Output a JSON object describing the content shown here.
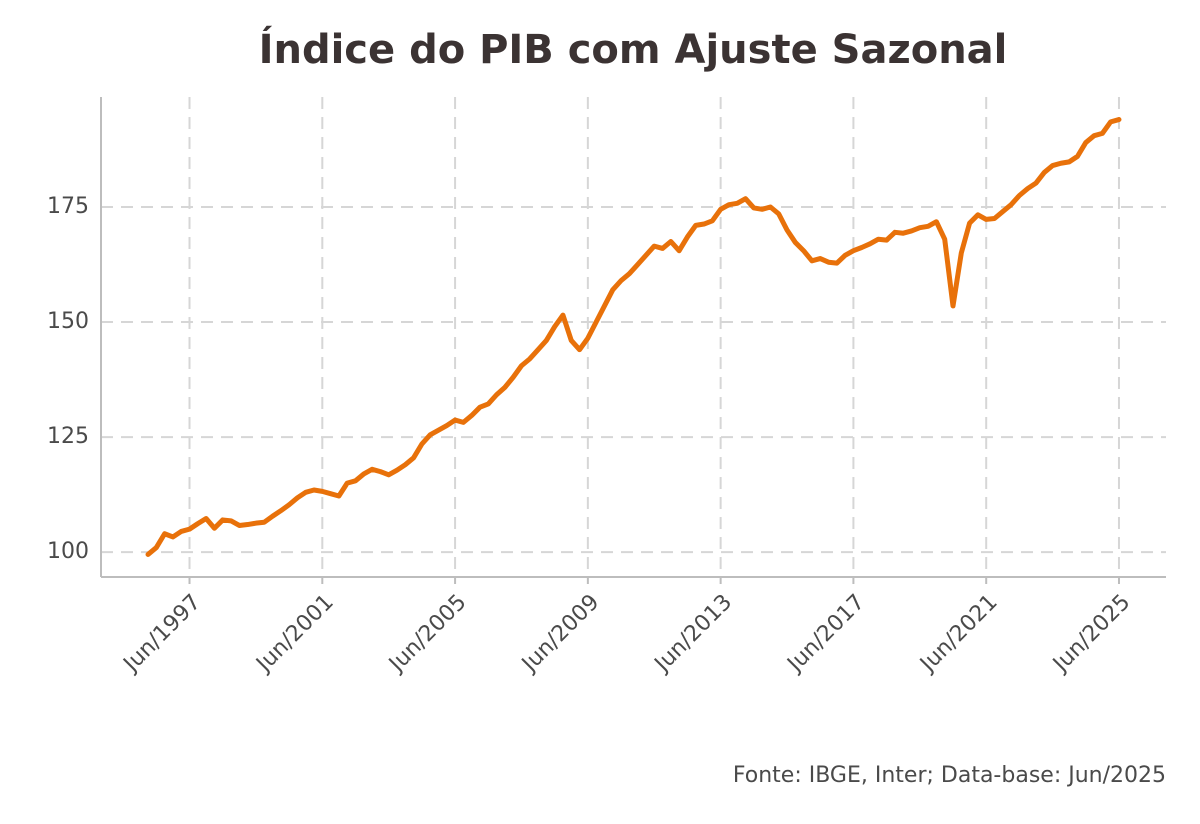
{
  "chart_data": {
    "type": "line",
    "title": "Índice do PIB com Ajuste Sazonal",
    "source": "Fonte: IBGE, Inter; Data-base: Jun/2025",
    "x": [
      "1996-03",
      "1996-06",
      "1996-09",
      "1996-12",
      "1997-03",
      "1997-06",
      "1997-09",
      "1997-12",
      "1998-03",
      "1998-06",
      "1998-09",
      "1998-12",
      "1999-03",
      "1999-06",
      "1999-09",
      "1999-12",
      "2000-03",
      "2000-06",
      "2000-09",
      "2000-12",
      "2001-03",
      "2001-06",
      "2001-09",
      "2001-12",
      "2002-03",
      "2002-06",
      "2002-09",
      "2002-12",
      "2003-03",
      "2003-06",
      "2003-09",
      "2003-12",
      "2004-03",
      "2004-06",
      "2004-09",
      "2004-12",
      "2005-03",
      "2005-06",
      "2005-09",
      "2005-12",
      "2006-03",
      "2006-06",
      "2006-09",
      "2006-12",
      "2007-03",
      "2007-06",
      "2007-09",
      "2007-12",
      "2008-03",
      "2008-06",
      "2008-09",
      "2008-12",
      "2009-03",
      "2009-06",
      "2009-09",
      "2009-12",
      "2010-03",
      "2010-06",
      "2010-09",
      "2010-12",
      "2011-03",
      "2011-06",
      "2011-09",
      "2011-12",
      "2012-03",
      "2012-06",
      "2012-09",
      "2012-12",
      "2013-03",
      "2013-06",
      "2013-09",
      "2013-12",
      "2014-03",
      "2014-06",
      "2014-09",
      "2014-12",
      "2015-03",
      "2015-06",
      "2015-09",
      "2015-12",
      "2016-03",
      "2016-06",
      "2016-09",
      "2016-12",
      "2017-03",
      "2017-06",
      "2017-09",
      "2017-12",
      "2018-03",
      "2018-06",
      "2018-09",
      "2018-12",
      "2019-03",
      "2019-06",
      "2019-09",
      "2019-12",
      "2020-03",
      "2020-06",
      "2020-09",
      "2020-12",
      "2021-03",
      "2021-06",
      "2021-09",
      "2021-12",
      "2022-03",
      "2022-06",
      "2022-09",
      "2022-12",
      "2023-03",
      "2023-06",
      "2023-09",
      "2023-12",
      "2024-03",
      "2024-06",
      "2024-09",
      "2024-12",
      "2025-03",
      "2025-06"
    ],
    "series": [
      {
        "color": "#e8710a",
        "values": [
          99.5,
          101,
          104,
          103.3,
          104.5,
          105,
          106.2,
          107.3,
          105.2,
          107,
          106.8,
          105.8,
          106,
          106.3,
          106.5,
          107.8,
          109,
          110.3,
          111.8,
          113,
          113.5,
          113.2,
          112.7,
          112.2,
          115,
          115.5,
          117,
          118,
          117.5,
          116.8,
          117.8,
          119,
          120.5,
          123.5,
          125.5,
          126.5,
          127.5,
          128.7,
          128.2,
          129.7,
          131.5,
          132.2,
          134.2,
          135.8,
          138,
          140.5,
          142,
          144,
          146,
          149,
          151.5,
          146,
          144,
          146.5,
          150,
          153.5,
          157,
          159,
          160.5,
          162.5,
          164.5,
          166.5,
          166,
          167.5,
          165.5,
          168.5,
          171,
          171.3,
          172,
          174.5,
          175.5,
          175.8,
          176.8,
          174.8,
          174.5,
          175,
          173.5,
          170,
          167.3,
          165.5,
          163.3,
          163.8,
          163,
          162.8,
          164.5,
          165.5,
          166.2,
          167,
          168,
          167.8,
          169.5,
          169.3,
          169.8,
          170.5,
          170.8,
          171.8,
          168,
          153.5,
          165,
          171.5,
          173.3,
          172.3,
          172.5,
          174,
          175.5,
          177.5,
          179,
          180.2,
          182.5,
          184,
          184.5,
          184.8,
          186,
          189,
          190.5,
          191,
          193.5,
          194
        ]
      }
    ],
    "xlim": [
      "1994-10",
      "2026-11"
    ],
    "xticks": [
      {
        "value": "1997-06",
        "label": "Jun/1997"
      },
      {
        "value": "2001-06",
        "label": "Jun/2001"
      },
      {
        "value": "2005-06",
        "label": "Jun/2005"
      },
      {
        "value": "2009-06",
        "label": "Jun/2009"
      },
      {
        "value": "2013-06",
        "label": "Jun/2013"
      },
      {
        "value": "2017-06",
        "label": "Jun/2017"
      },
      {
        "value": "2021-06",
        "label": "Jun/2021"
      },
      {
        "value": "2025-06",
        "label": "Jun/2025"
      }
    ],
    "ylim": [
      94.6,
      198.9
    ],
    "yticks": [
      100,
      125,
      150,
      175
    ],
    "grid": true
  }
}
